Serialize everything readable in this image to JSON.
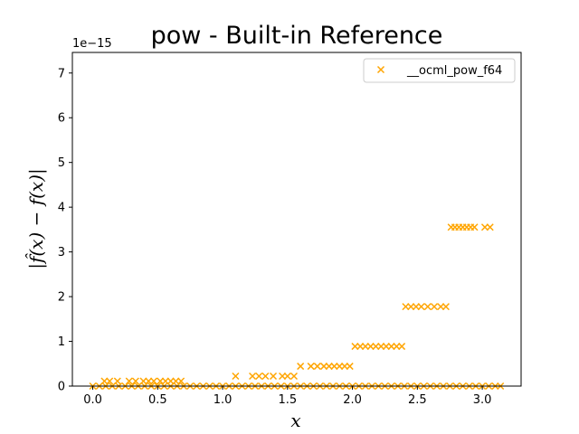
{
  "chart_data": {
    "type": "scatter",
    "title": "pow - Built-in Reference",
    "xlabel": "x",
    "ylabel": "|f̂(x) − f(x)|",
    "y_scale_label": "1e−15",
    "xlim": [
      -0.157,
      3.299
    ],
    "ylim": [
      0,
      7.46
    ],
    "xticks": [
      0.0,
      0.5,
      1.0,
      1.5,
      2.0,
      2.5,
      3.0
    ],
    "xtick_labels": [
      "0.0",
      "0.5",
      "1.0",
      "1.5",
      "2.0",
      "2.5",
      "3.0"
    ],
    "yticks": [
      0,
      1,
      2,
      3,
      4,
      5,
      6,
      7
    ],
    "ytick_labels": [
      "0",
      "1",
      "2",
      "3",
      "4",
      "5",
      "6",
      "7"
    ],
    "marker": "x",
    "color": "#FFA500",
    "legend": {
      "position": "top-right",
      "entries": [
        "__ocml_pow_f64"
      ]
    },
    "series": [
      {
        "name": "__ocml_pow_f64",
        "points": [
          [
            0.0,
            0
          ],
          [
            0.05,
            0
          ],
          [
            0.1,
            0
          ],
          [
            0.15,
            0
          ],
          [
            0.2,
            0
          ],
          [
            0.25,
            0
          ],
          [
            0.3,
            0
          ],
          [
            0.35,
            0
          ],
          [
            0.4,
            0
          ],
          [
            0.45,
            0
          ],
          [
            0.5,
            0
          ],
          [
            0.55,
            0
          ],
          [
            0.6,
            0
          ],
          [
            0.65,
            0
          ],
          [
            0.7,
            0
          ],
          [
            0.75,
            0
          ],
          [
            0.8,
            0
          ],
          [
            0.85,
            0
          ],
          [
            0.9,
            0
          ],
          [
            0.95,
            0
          ],
          [
            1.0,
            0
          ],
          [
            1.05,
            0
          ],
          [
            1.1,
            0
          ],
          [
            1.15,
            0
          ],
          [
            1.2,
            0
          ],
          [
            1.25,
            0
          ],
          [
            1.3,
            0
          ],
          [
            1.35,
            0
          ],
          [
            1.4,
            0
          ],
          [
            1.45,
            0
          ],
          [
            1.5,
            0
          ],
          [
            1.55,
            0
          ],
          [
            1.6,
            0
          ],
          [
            1.65,
            0
          ],
          [
            1.7,
            0
          ],
          [
            1.75,
            0
          ],
          [
            1.8,
            0
          ],
          [
            1.85,
            0
          ],
          [
            1.9,
            0
          ],
          [
            1.95,
            0
          ],
          [
            2.0,
            0
          ],
          [
            2.05,
            0
          ],
          [
            2.1,
            0
          ],
          [
            2.15,
            0
          ],
          [
            2.2,
            0
          ],
          [
            2.25,
            0
          ],
          [
            2.3,
            0
          ],
          [
            2.35,
            0
          ],
          [
            2.4,
            0
          ],
          [
            2.45,
            0
          ],
          [
            2.5,
            0
          ],
          [
            2.55,
            0
          ],
          [
            2.6,
            0
          ],
          [
            2.65,
            0
          ],
          [
            2.7,
            0
          ],
          [
            2.75,
            0
          ],
          [
            2.8,
            0
          ],
          [
            2.85,
            0
          ],
          [
            2.9,
            0
          ],
          [
            2.95,
            0
          ],
          [
            3.0,
            0
          ],
          [
            3.05,
            0
          ],
          [
            3.1,
            0
          ],
          [
            3.14,
            0
          ],
          [
            0.09,
            0.111
          ],
          [
            0.13,
            0.111
          ],
          [
            0.19,
            0.111
          ],
          [
            0.28,
            0.111
          ],
          [
            0.33,
            0.111
          ],
          [
            0.39,
            0.111
          ],
          [
            0.43,
            0.111
          ],
          [
            0.47,
            0.111
          ],
          [
            0.52,
            0.111
          ],
          [
            0.56,
            0.111
          ],
          [
            0.6,
            0.111
          ],
          [
            0.64,
            0.111
          ],
          [
            0.68,
            0.111
          ],
          [
            1.1,
            0.222
          ],
          [
            1.23,
            0.222
          ],
          [
            1.28,
            0.222
          ],
          [
            1.33,
            0.222
          ],
          [
            1.39,
            0.222
          ],
          [
            1.46,
            0.222
          ],
          [
            1.5,
            0.222
          ],
          [
            1.55,
            0.222
          ],
          [
            1.6,
            0.444
          ],
          [
            1.68,
            0.444
          ],
          [
            1.73,
            0.444
          ],
          [
            1.78,
            0.444
          ],
          [
            1.82,
            0.444
          ],
          [
            1.86,
            0.444
          ],
          [
            1.9,
            0.444
          ],
          [
            1.94,
            0.444
          ],
          [
            1.98,
            0.444
          ],
          [
            2.02,
            0.888
          ],
          [
            2.06,
            0.888
          ],
          [
            2.1,
            0.888
          ],
          [
            2.14,
            0.888
          ],
          [
            2.18,
            0.888
          ],
          [
            2.22,
            0.888
          ],
          [
            2.26,
            0.888
          ],
          [
            2.3,
            0.888
          ],
          [
            2.34,
            0.888
          ],
          [
            2.38,
            0.888
          ],
          [
            2.41,
            1.776
          ],
          [
            2.45,
            1.776
          ],
          [
            2.49,
            1.776
          ],
          [
            2.53,
            1.776
          ],
          [
            2.58,
            1.776
          ],
          [
            2.63,
            1.776
          ],
          [
            2.68,
            1.776
          ],
          [
            2.72,
            1.776
          ],
          [
            2.76,
            3.553
          ],
          [
            2.79,
            3.553
          ],
          [
            2.82,
            3.553
          ],
          [
            2.85,
            3.553
          ],
          [
            2.88,
            3.553
          ],
          [
            2.91,
            3.553
          ],
          [
            2.94,
            3.553
          ],
          [
            3.02,
            3.553
          ],
          [
            3.06,
            3.553
          ]
        ]
      }
    ]
  }
}
